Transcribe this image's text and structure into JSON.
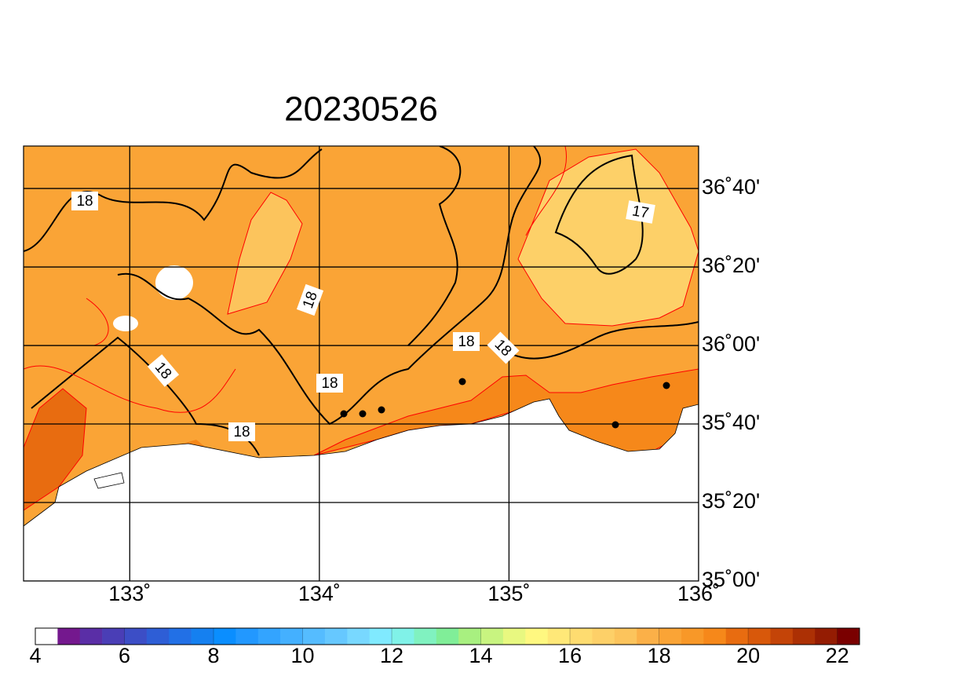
{
  "title": "20230526",
  "map": {
    "xlim": [
      132.44,
      136
    ],
    "ylim": [
      35,
      36.847
    ],
    "xticks": [
      {
        "value": 133,
        "label": "133˚"
      },
      {
        "value": 134,
        "label": "134˚"
      },
      {
        "value": 135,
        "label": "135˚"
      },
      {
        "value": 136,
        "label": "136˚"
      }
    ],
    "yticks": [
      {
        "value": 35,
        "label": "35˚00'"
      },
      {
        "value": 35.3333,
        "label": "35˚20'"
      },
      {
        "value": 35.6667,
        "label": "35˚40'"
      },
      {
        "value": 36,
        "label": "36˚00'"
      },
      {
        "value": 36.3333,
        "label": "36˚20'"
      },
      {
        "value": 36.6667,
        "label": "36˚40'"
      }
    ],
    "contour_labels": [
      18,
      18,
      18,
      18,
      18,
      18,
      18,
      17
    ]
  },
  "colorbar": {
    "lim": [
      4,
      22.5
    ],
    "ticks": [
      4,
      6,
      8,
      10,
      12,
      14,
      16,
      18,
      20,
      22
    ],
    "colors": [
      "#ffffff",
      "#74188e",
      "#5a2ea6",
      "#4a3eb6",
      "#3c4ec6",
      "#2e5ed6",
      "#2270e6",
      "#1580f0",
      "#0a8eff",
      "#2298ff",
      "#33a4ff",
      "#44b0ff",
      "#55bcff",
      "#66c8ff",
      "#78d8ff",
      "#80eaff",
      "#80f2e8",
      "#80f2c0",
      "#80ee98",
      "#a8f080",
      "#c8f480",
      "#e8f880",
      "#fff880",
      "#ffe878",
      "#fedc70",
      "#fdd068",
      "#fcc45c",
      "#fbb048",
      "#faa436",
      "#f89828",
      "#f6881a",
      "#e86c10",
      "#d8580a",
      "#c44408",
      "#ac3004",
      "#941c02",
      "#7a0000"
    ]
  }
}
